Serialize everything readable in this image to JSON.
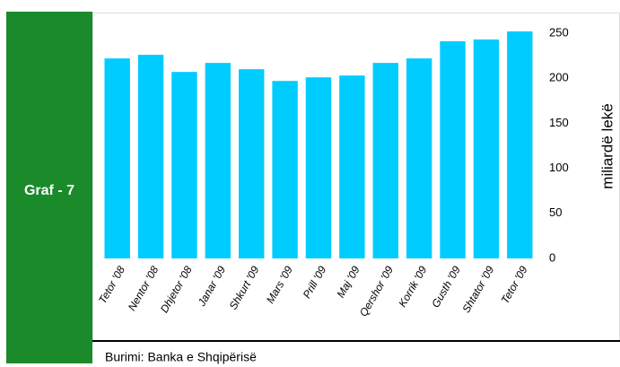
{
  "sidebar": {
    "label": "Graf - 7"
  },
  "source": "Burimi: Banka e Shqipërisë",
  "chart_data": {
    "type": "bar",
    "categories": [
      "Tetor '08",
      "Nentor '08",
      "Dhjetor '08",
      "Janar '09",
      "Shkurt '09",
      "Mars '09",
      "Prill '09",
      "Maj '09",
      "Qershor '09",
      "Korrik '09",
      "Gusth '09",
      "Shtator '09",
      "Tetor '09"
    ],
    "values": [
      222,
      226,
      207,
      217,
      210,
      197,
      201,
      203,
      217,
      222,
      241,
      243,
      252
    ],
    "color": "#00ccff",
    "y_label": "miliardë lekë",
    "ylim": [
      0,
      250
    ],
    "yticks": [
      0,
      50,
      100,
      150,
      200,
      250
    ],
    "axis_side": "right",
    "grid": false
  }
}
